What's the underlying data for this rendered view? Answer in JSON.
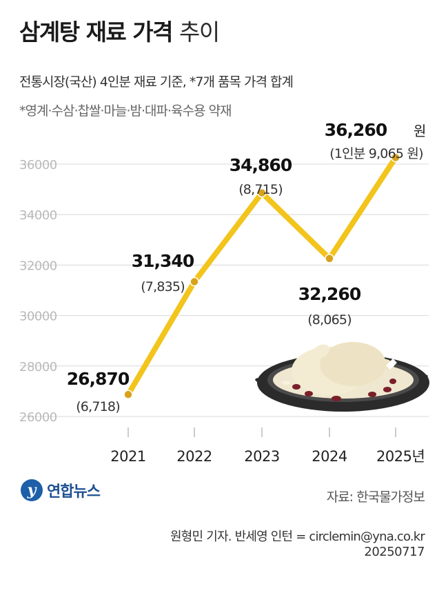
{
  "header": {
    "title_bold": "삼계탕 재료 가격",
    "title_light": "추이",
    "subtitle": "전통시장(국산) 4인분 재료 기준, *7개 품목 가격 합계",
    "note": "*영계·수삼·찹쌀·마늘·밤·대파·육수용 약재"
  },
  "chart_data": {
    "type": "line",
    "x": [
      "2021",
      "2022",
      "2023",
      "2024",
      "2025"
    ],
    "x_tick_labels": [
      "2021",
      "2022",
      "2023",
      "2024",
      "2025년"
    ],
    "series": [
      {
        "values": [
          26870,
          31340,
          34860,
          32260,
          36260
        ]
      }
    ],
    "value_labels": [
      "26,870",
      "31,340",
      "34,860",
      "32,260",
      "36,260"
    ],
    "per_person_labels": [
      "(6,718)",
      "(7,835)",
      "(8,715)",
      "(8,065)",
      "(1인분 9,065 원)"
    ],
    "value_unit": "원",
    "y_ticks": [
      26000,
      28000,
      30000,
      32000,
      34000,
      36000
    ],
    "ylim": [
      26000,
      36000
    ],
    "grid": true,
    "line_color": "#f2c41c",
    "point_color": "#d9a21b",
    "grid_color": "#d8d8d8"
  },
  "footer": {
    "logo_mark": "y",
    "logo_text": "연합뉴스",
    "source": "자료: 한국물가정보",
    "credit": "원형민 기자. 반세영 인턴 = circlemin@yna.co.kr",
    "date": "20250717"
  }
}
